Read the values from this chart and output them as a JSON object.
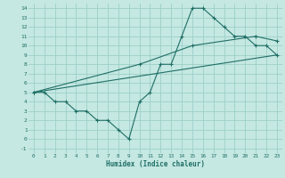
{
  "xlabel": "Humidex (Indice chaleur)",
  "bg_color": "#c5e8e2",
  "grid_color": "#9ccfc8",
  "line_color": "#1e6e65",
  "xlim": [
    -0.5,
    23.5
  ],
  "ylim": [
    -1.5,
    14.5
  ],
  "xticks": [
    0,
    1,
    2,
    3,
    4,
    5,
    6,
    7,
    8,
    9,
    10,
    11,
    12,
    13,
    14,
    15,
    16,
    17,
    18,
    19,
    20,
    21,
    22,
    23
  ],
  "yticks": [
    -1,
    0,
    1,
    2,
    3,
    4,
    5,
    6,
    7,
    8,
    9,
    10,
    11,
    12,
    13,
    14
  ],
  "line1_x": [
    0,
    1,
    2,
    3,
    4,
    5,
    6,
    7,
    8,
    9,
    10,
    11,
    12,
    13,
    14,
    15,
    16,
    17,
    18,
    19,
    20,
    21,
    22,
    23
  ],
  "line1_y": [
    5,
    5,
    4,
    4,
    3,
    3,
    2,
    2,
    1,
    0,
    4,
    5,
    8,
    8,
    11,
    14,
    14,
    13,
    12,
    11,
    11,
    10,
    10,
    9
  ],
  "line2_x": [
    0,
    23
  ],
  "line2_y": [
    5,
    9
  ],
  "line3_x": [
    0,
    10,
    15,
    21,
    23
  ],
  "line3_y": [
    5,
    8,
    10,
    11,
    10.5
  ]
}
